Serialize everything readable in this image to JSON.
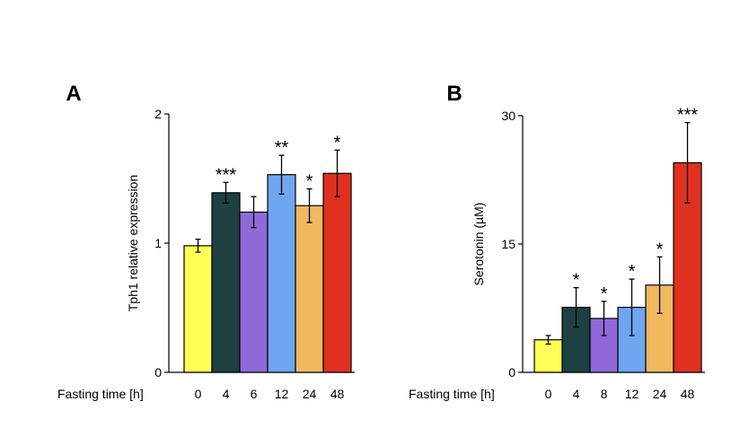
{
  "chart_data": [
    {
      "panel": "A",
      "type": "bar",
      "xlabel": "Fasting time [h]",
      "ylabel": "Tph1 relative expression",
      "ylim": [
        0,
        2
      ],
      "yticks": [
        "0",
        "1",
        "2"
      ],
      "categories": [
        "0",
        "4",
        "6",
        "12",
        "24",
        "48"
      ],
      "values": [
        0.98,
        1.39,
        1.24,
        1.53,
        1.29,
        1.54
      ],
      "errors": [
        0.05,
        0.08,
        0.12,
        0.15,
        0.13,
        0.18
      ],
      "significance": [
        "",
        "***",
        "",
        "**",
        "*",
        "*"
      ],
      "colors": [
        "#ffff55",
        "#1f4040",
        "#8f6ad8",
        "#6ea6f0",
        "#f0b960",
        "#e03020"
      ],
      "grid": false
    },
    {
      "panel": "B",
      "type": "bar",
      "xlabel": "Fasting time [h]",
      "ylabel": "Serotonin (µM)",
      "ylim": [
        0,
        30
      ],
      "yticks": [
        "0",
        "15",
        "30"
      ],
      "categories": [
        "0",
        "4",
        "8",
        "12",
        "24",
        "48"
      ],
      "values": [
        3.8,
        7.6,
        6.3,
        7.6,
        10.2,
        24.5
      ],
      "errors": [
        0.5,
        2.3,
        2.0,
        3.3,
        3.3,
        4.7
      ],
      "significance": [
        "",
        "*",
        "*",
        "*",
        "*",
        "***"
      ],
      "colors": [
        "#ffff55",
        "#1f4040",
        "#8f6ad8",
        "#6ea6f0",
        "#f0b960",
        "#e03020"
      ],
      "grid": false
    }
  ]
}
